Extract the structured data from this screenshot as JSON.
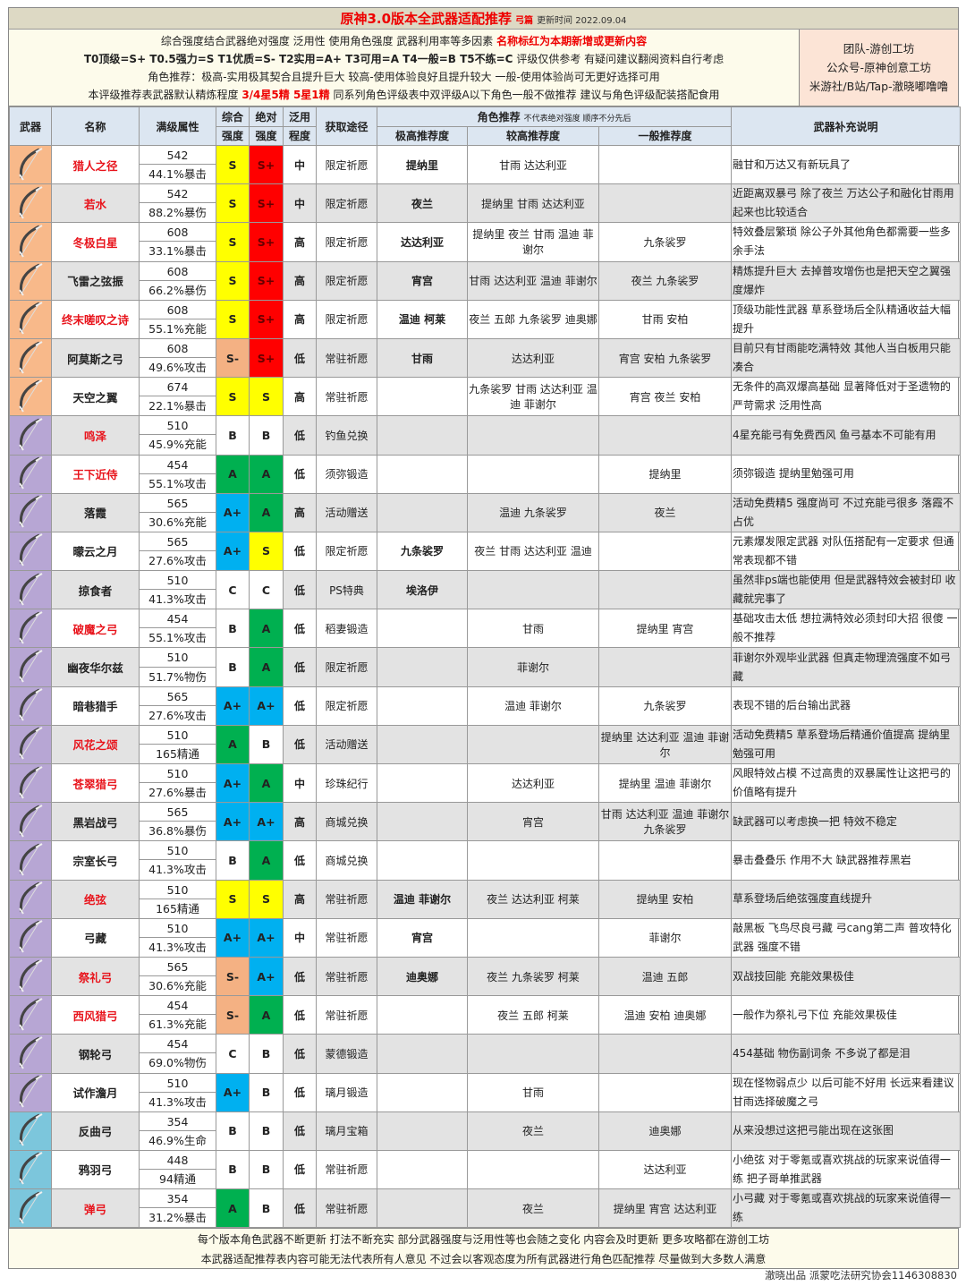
{
  "header": {
    "title": "原神3.0版本全武器适配推荐",
    "subtitle": "弓篇",
    "updated": "更新时间 2022.09.04",
    "line1": "综合强度结合武器绝对强度 泛用性 使用角色强度 武器利用率等多因素",
    "line1_red": "名称标红为本期新增或更新内容",
    "line2_bold": "T0顶级=S+ T0.5强力=S T1优质=S- T2实用=A+ T3可用=A T4一般=B T5不练=C",
    "line2": "评级仅供参考 有疑问建议翻阅资料自行考虑",
    "line3": "角色推荐：极高-实用极其契合且提升巨大 较高-使用体验良好且提升较大 一般-使用体验尚可无更好选择可用",
    "line4a": "本评级推荐表武器默认精炼程度",
    "line4_red": "3/4星5精 5星1精",
    "line4b": "同系列角色评级表中双评级A以下角色一般不做推荐 建议与角色评级配装搭配食用",
    "team": [
      "团队-游创工坊",
      "公众号-原神创意工坊",
      "米游社/B站/Tap-澈晓嘟噜噜"
    ]
  },
  "columns": {
    "weapon": "武器",
    "name": "名称",
    "stat": "满级属性",
    "overall": [
      "综合",
      "强度"
    ],
    "absolute": [
      "绝对",
      "强度"
    ],
    "versatility": [
      "泛用",
      "程度"
    ],
    "source": "获取途径",
    "rec": "角色推荐",
    "rec_note": "不代表绝对强度 顺序不分先后",
    "high": "极高推荐度",
    "mid": "较高推荐度",
    "low": "一般推荐度",
    "desc": "武器补充说明"
  },
  "grade_colors": {
    "S+": "#ff0000",
    "S": "#ffff00",
    "S-": "#f4b183",
    "A+": "#00b0f0",
    "A": "#00b050",
    "B": "#ffffff",
    "C": "#ffffff"
  },
  "rarity_colors": {
    "5": "#f8b98a",
    "4": "#b7a6d4",
    "3": "#7cc6dc"
  },
  "weapons": [
    {
      "icon": "bow-icon",
      "rarity": 5,
      "name": "猎人之径",
      "new": true,
      "base": "542",
      "sub": "44.1%暴击",
      "overall": "S",
      "absolute": "S+",
      "vers": "中",
      "source": "限定祈愿",
      "high": "提纳里",
      "mid": "甘雨 达达利亚",
      "low": "",
      "desc": "融甘和万达又有新玩具了"
    },
    {
      "icon": "bow-icon",
      "rarity": 5,
      "name": "若水",
      "new": true,
      "base": "542",
      "sub": "88.2%暴伤",
      "overall": "S",
      "absolute": "S+",
      "vers": "中",
      "source": "限定祈愿",
      "high": "夜兰",
      "mid": "提纳里 甘雨 达达利亚",
      "low": "",
      "desc": "近距离双暴弓 除了夜兰 万达公子和融化甘雨用起来也比较适合"
    },
    {
      "icon": "bow-icon",
      "rarity": 5,
      "name": "冬极白星",
      "new": true,
      "base": "608",
      "sub": "33.1%暴击",
      "overall": "S",
      "absolute": "S+",
      "vers": "高",
      "source": "限定祈愿",
      "high": "达达利亚",
      "mid": "提纳里 夜兰 甘雨 温迪 菲谢尔",
      "low": "九条裟罗",
      "desc": "特效叠层繁琐 除公子外其他角色都需要一些多余手法"
    },
    {
      "icon": "bow-icon",
      "rarity": 5,
      "name": "飞雷之弦振",
      "new": false,
      "base": "608",
      "sub": "66.2%暴伤",
      "overall": "S",
      "absolute": "S+",
      "vers": "高",
      "source": "限定祈愿",
      "high": "宵宫",
      "mid": "甘雨 达达利亚 温迪 菲谢尔",
      "low": "夜兰 九条裟罗",
      "desc": "精炼提升巨大 去掉普攻增伤也是把天空之翼强度爆炸"
    },
    {
      "icon": "bow-icon",
      "rarity": 5,
      "name": "终末嗟叹之诗",
      "new": true,
      "base": "608",
      "sub": "55.1%充能",
      "overall": "S",
      "absolute": "S+",
      "vers": "高",
      "source": "限定祈愿",
      "high": "温迪 柯莱",
      "mid": "夜兰 五郎 九条裟罗 迪奥娜",
      "low": "甘雨 安柏",
      "desc": "顶级功能性武器 草系登场后全队精通收益大幅提升"
    },
    {
      "icon": "bow-icon",
      "rarity": 5,
      "name": "阿莫斯之弓",
      "new": false,
      "base": "608",
      "sub": "49.6%攻击",
      "overall": "S-",
      "absolute": "S+",
      "vers": "低",
      "source": "常驻祈愿",
      "high": "甘雨",
      "mid": "达达利亚",
      "low": "宵宫 安柏 九条裟罗",
      "desc": "目前只有甘雨能吃满特效 其他人当白板用只能凑合"
    },
    {
      "icon": "bow-icon",
      "rarity": 5,
      "name": "天空之翼",
      "new": false,
      "base": "674",
      "sub": "22.1%暴击",
      "overall": "S",
      "absolute": "S",
      "vers": "高",
      "source": "常驻祈愿",
      "high": "",
      "mid": "九条裟罗 甘雨 达达利亚 温迪 菲谢尔",
      "low": "宵宫 夜兰 安柏",
      "desc": "无条件的高双爆高基础 显著降低对于圣遗物的严苛需求 泛用性高"
    },
    {
      "icon": "bow-icon",
      "rarity": 4,
      "name": "鸣泽",
      "new": true,
      "base": "510",
      "sub": "45.9%充能",
      "overall": "B",
      "absolute": "B",
      "vers": "低",
      "source": "钓鱼兑换",
      "high": "",
      "mid": "",
      "low": "",
      "desc": "4星充能弓有免费西风 鱼弓基本不可能有用"
    },
    {
      "icon": "bow-icon",
      "rarity": 4,
      "name": "王下近侍",
      "new": true,
      "base": "454",
      "sub": "55.1%攻击",
      "overall": "A",
      "absolute": "A",
      "vers": "低",
      "source": "须弥锻造",
      "high": "",
      "mid": "",
      "low": "提纳里",
      "desc": "须弥锻造 提纳里勉强可用"
    },
    {
      "icon": "bow-icon",
      "rarity": 4,
      "name": "落霞",
      "new": false,
      "base": "565",
      "sub": "30.6%充能",
      "overall": "A+",
      "absolute": "A",
      "vers": "高",
      "source": "活动赠送",
      "high": "",
      "mid": "温迪 九条裟罗",
      "low": "夜兰",
      "desc": "活动免费精5 强度尚可 不过充能弓很多 落霞不占优"
    },
    {
      "icon": "bow-icon",
      "rarity": 4,
      "name": "曚云之月",
      "new": false,
      "base": "565",
      "sub": "27.6%攻击",
      "overall": "A+",
      "absolute": "S",
      "vers": "低",
      "source": "限定祈愿",
      "high": "九条裟罗",
      "mid": "夜兰 甘雨 达达利亚 温迪",
      "low": "",
      "desc": "元素爆发限定武器 对队伍搭配有一定要求 但通常表现都不错"
    },
    {
      "icon": "bow-icon",
      "rarity": 4,
      "name": "掠食者",
      "new": false,
      "base": "510",
      "sub": "41.3%攻击",
      "overall": "C",
      "absolute": "C",
      "vers": "低",
      "source": "PS特典",
      "high": "埃洛伊",
      "mid": "",
      "low": "",
      "desc": "虽然非ps端也能使用 但是武器特效会被封印 收藏就完事了"
    },
    {
      "icon": "bow-icon",
      "rarity": 4,
      "name": "破魔之弓",
      "new": true,
      "base": "454",
      "sub": "55.1%攻击",
      "overall": "B",
      "absolute": "A",
      "vers": "低",
      "source": "稻妻锻造",
      "high": "",
      "mid": "甘雨",
      "low": "提纳里 宵宫",
      "desc": "基础攻击太低 想拉满特效必须封印大招 很傻 一般不推荐"
    },
    {
      "icon": "bow-icon",
      "rarity": 4,
      "name": "幽夜华尔兹",
      "new": false,
      "base": "510",
      "sub": "51.7%物伤",
      "overall": "B",
      "absolute": "A",
      "vers": "低",
      "source": "限定祈愿",
      "high": "",
      "mid": "菲谢尔",
      "low": "",
      "desc": "菲谢尔外观毕业武器 但真走物理流强度不如弓藏"
    },
    {
      "icon": "bow-icon",
      "rarity": 4,
      "name": "暗巷猎手",
      "new": false,
      "base": "565",
      "sub": "27.6%攻击",
      "overall": "A+",
      "absolute": "A+",
      "vers": "低",
      "source": "限定祈愿",
      "high": "",
      "mid": "温迪 菲谢尔",
      "low": "九条裟罗",
      "desc": "表现不错的后台输出武器"
    },
    {
      "icon": "bow-icon",
      "rarity": 4,
      "name": "风花之颂",
      "new": true,
      "base": "510",
      "sub": "165精通",
      "overall": "A",
      "absolute": "B",
      "vers": "低",
      "source": "活动赠送",
      "high": "",
      "mid": "",
      "low": "提纳里 达达利亚 温迪 菲谢尔",
      "desc": "活动免费精5 草系登场后精通价值提高 提纳里勉强可用"
    },
    {
      "icon": "bow-icon",
      "rarity": 4,
      "name": "苍翠猎弓",
      "new": true,
      "base": "510",
      "sub": "27.6%暴击",
      "overall": "A+",
      "absolute": "A",
      "vers": "中",
      "source": "珍珠纪行",
      "high": "",
      "mid": "达达利亚",
      "low": "提纳里 温迪 菲谢尔",
      "desc": "风眼特效占模 不过高贵的双暴属性让这把弓的价值略有提升"
    },
    {
      "icon": "bow-icon",
      "rarity": 4,
      "name": "黑岩战弓",
      "new": false,
      "base": "565",
      "sub": "36.8%暴伤",
      "overall": "A+",
      "absolute": "A+",
      "vers": "高",
      "source": "商城兑换",
      "high": "",
      "mid": "宵宫",
      "low": "甘雨 达达利亚 温迪 菲谢尔 九条裟罗",
      "desc": "缺武器可以考虑换一把 特效不稳定"
    },
    {
      "icon": "bow-icon",
      "rarity": 4,
      "name": "宗室长弓",
      "new": false,
      "base": "510",
      "sub": "41.3%攻击",
      "overall": "B",
      "absolute": "A",
      "vers": "低",
      "source": "商城兑换",
      "high": "",
      "mid": "",
      "low": "",
      "desc": "暴击叠叠乐 作用不大 缺武器推荐黑岩"
    },
    {
      "icon": "bow-icon",
      "rarity": 4,
      "name": "绝弦",
      "new": true,
      "base": "510",
      "sub": "165精通",
      "overall": "S",
      "absolute": "S",
      "vers": "高",
      "source": "常驻祈愿",
      "high": "温迪 菲谢尔",
      "mid": "夜兰 达达利亚 柯莱",
      "low": "提纳里 安柏",
      "desc": "草系登场后绝弦强度直线提升"
    },
    {
      "icon": "bow-icon",
      "rarity": 4,
      "name": "弓藏",
      "new": false,
      "base": "510",
      "sub": "41.3%攻击",
      "overall": "A+",
      "absolute": "A+",
      "vers": "中",
      "source": "常驻祈愿",
      "high": "宵宫",
      "mid": "",
      "low": "菲谢尔",
      "desc": "敲黑板 飞鸟尽良弓藏 弓cang第二声 普攻特化武器 强度不错"
    },
    {
      "icon": "bow-icon",
      "rarity": 4,
      "name": "祭礼弓",
      "new": true,
      "base": "565",
      "sub": "30.6%充能",
      "overall": "S-",
      "absolute": "A+",
      "vers": "低",
      "source": "常驻祈愿",
      "high": "迪奥娜",
      "mid": "夜兰 九条裟罗 柯莱",
      "low": "温迪 五郎",
      "desc": "双战技回能 充能效果极佳"
    },
    {
      "icon": "bow-icon",
      "rarity": 4,
      "name": "西风猎弓",
      "new": true,
      "base": "454",
      "sub": "61.3%充能",
      "overall": "S-",
      "absolute": "A",
      "vers": "低",
      "source": "常驻祈愿",
      "high": "",
      "mid": "夜兰 五郎 柯莱",
      "low": "温迪 安柏 迪奥娜",
      "desc": "一般作为祭礼弓下位 充能效果极佳"
    },
    {
      "icon": "bow-icon",
      "rarity": 4,
      "name": "钢轮弓",
      "new": false,
      "base": "454",
      "sub": "69.0%物伤",
      "overall": "C",
      "absolute": "B",
      "vers": "低",
      "source": "蒙德锻造",
      "high": "",
      "mid": "",
      "low": "",
      "desc": "454基础 物伤副词条 不多说了都是泪"
    },
    {
      "icon": "bow-icon",
      "rarity": 4,
      "name": "试作澹月",
      "new": false,
      "base": "510",
      "sub": "41.3%攻击",
      "overall": "A+",
      "absolute": "B",
      "vers": "低",
      "source": "璃月锻造",
      "high": "",
      "mid": "甘雨",
      "low": "",
      "desc": "现在怪物弱点少 以后可能不好用 长远来看建议甘雨选择破魔之弓"
    },
    {
      "icon": "bow-icon",
      "rarity": 3,
      "name": "反曲弓",
      "new": false,
      "base": "354",
      "sub": "46.9%生命",
      "overall": "B",
      "absolute": "B",
      "vers": "低",
      "source": "璃月宝箱",
      "high": "",
      "mid": "夜兰",
      "low": "迪奥娜",
      "desc": "从来没想过这把弓能出现在这张图"
    },
    {
      "icon": "bow-icon",
      "rarity": 3,
      "name": "鸦羽弓",
      "new": false,
      "base": "448",
      "sub": "94精通",
      "overall": "B",
      "absolute": "B",
      "vers": "低",
      "source": "常驻祈愿",
      "high": "",
      "mid": "",
      "low": "达达利亚",
      "desc": "小绝弦 对于零氪或喜欢挑战的玩家来说值得一练 把子哥单推武器"
    },
    {
      "icon": "bow-icon",
      "rarity": 3,
      "name": "弹弓",
      "new": true,
      "base": "354",
      "sub": "31.2%暴击",
      "overall": "A",
      "absolute": "B",
      "vers": "低",
      "source": "常驻祈愿",
      "high": "",
      "mid": "夜兰",
      "low": "提纳里 宵宫 达达利亚",
      "desc": "小弓藏 对于零氪或喜欢挑战的玩家来说值得一练"
    }
  ],
  "footer": {
    "line1": "每个版本角色武器不断更新 打法不断充实 部分武器强度与泛用性等也会随之变化 内容会及时更新 更多攻略都在游创工坊",
    "line2": "本武器适配推荐表内容可能无法代表所有人意见 不过会以客观态度为所有武器进行角色匹配推荐 尽量做到大多数人满意"
  },
  "credit": "澈晓出品 派蒙吃法研究协会1146308830"
}
